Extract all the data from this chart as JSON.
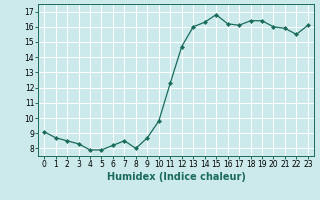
{
  "x": [
    0,
    1,
    2,
    3,
    4,
    5,
    6,
    7,
    8,
    9,
    10,
    11,
    12,
    13,
    14,
    15,
    16,
    17,
    18,
    19,
    20,
    21,
    22,
    23
  ],
  "y": [
    9.1,
    8.7,
    8.5,
    8.3,
    7.9,
    7.9,
    8.2,
    8.5,
    8.0,
    8.7,
    9.8,
    12.3,
    14.7,
    16.0,
    16.3,
    16.8,
    16.2,
    16.1,
    16.4,
    16.4,
    16.0,
    15.9,
    15.5,
    16.1
  ],
  "line_color": "#1a6b5a",
  "marker": "D",
  "marker_size": 2,
  "bg_color": "#cceaec",
  "grid_color": "#ffffff",
  "xlabel": "Humidex (Indice chaleur)",
  "xlim": [
    -0.5,
    23.5
  ],
  "ylim": [
    7.5,
    17.5
  ],
  "yticks": [
    8,
    9,
    10,
    11,
    12,
    13,
    14,
    15,
    16,
    17
  ],
  "xticks": [
    0,
    1,
    2,
    3,
    4,
    5,
    6,
    7,
    8,
    9,
    10,
    11,
    12,
    13,
    14,
    15,
    16,
    17,
    18,
    19,
    20,
    21,
    22,
    23
  ],
  "tick_label_fontsize": 5.5,
  "xlabel_fontsize": 7.0
}
